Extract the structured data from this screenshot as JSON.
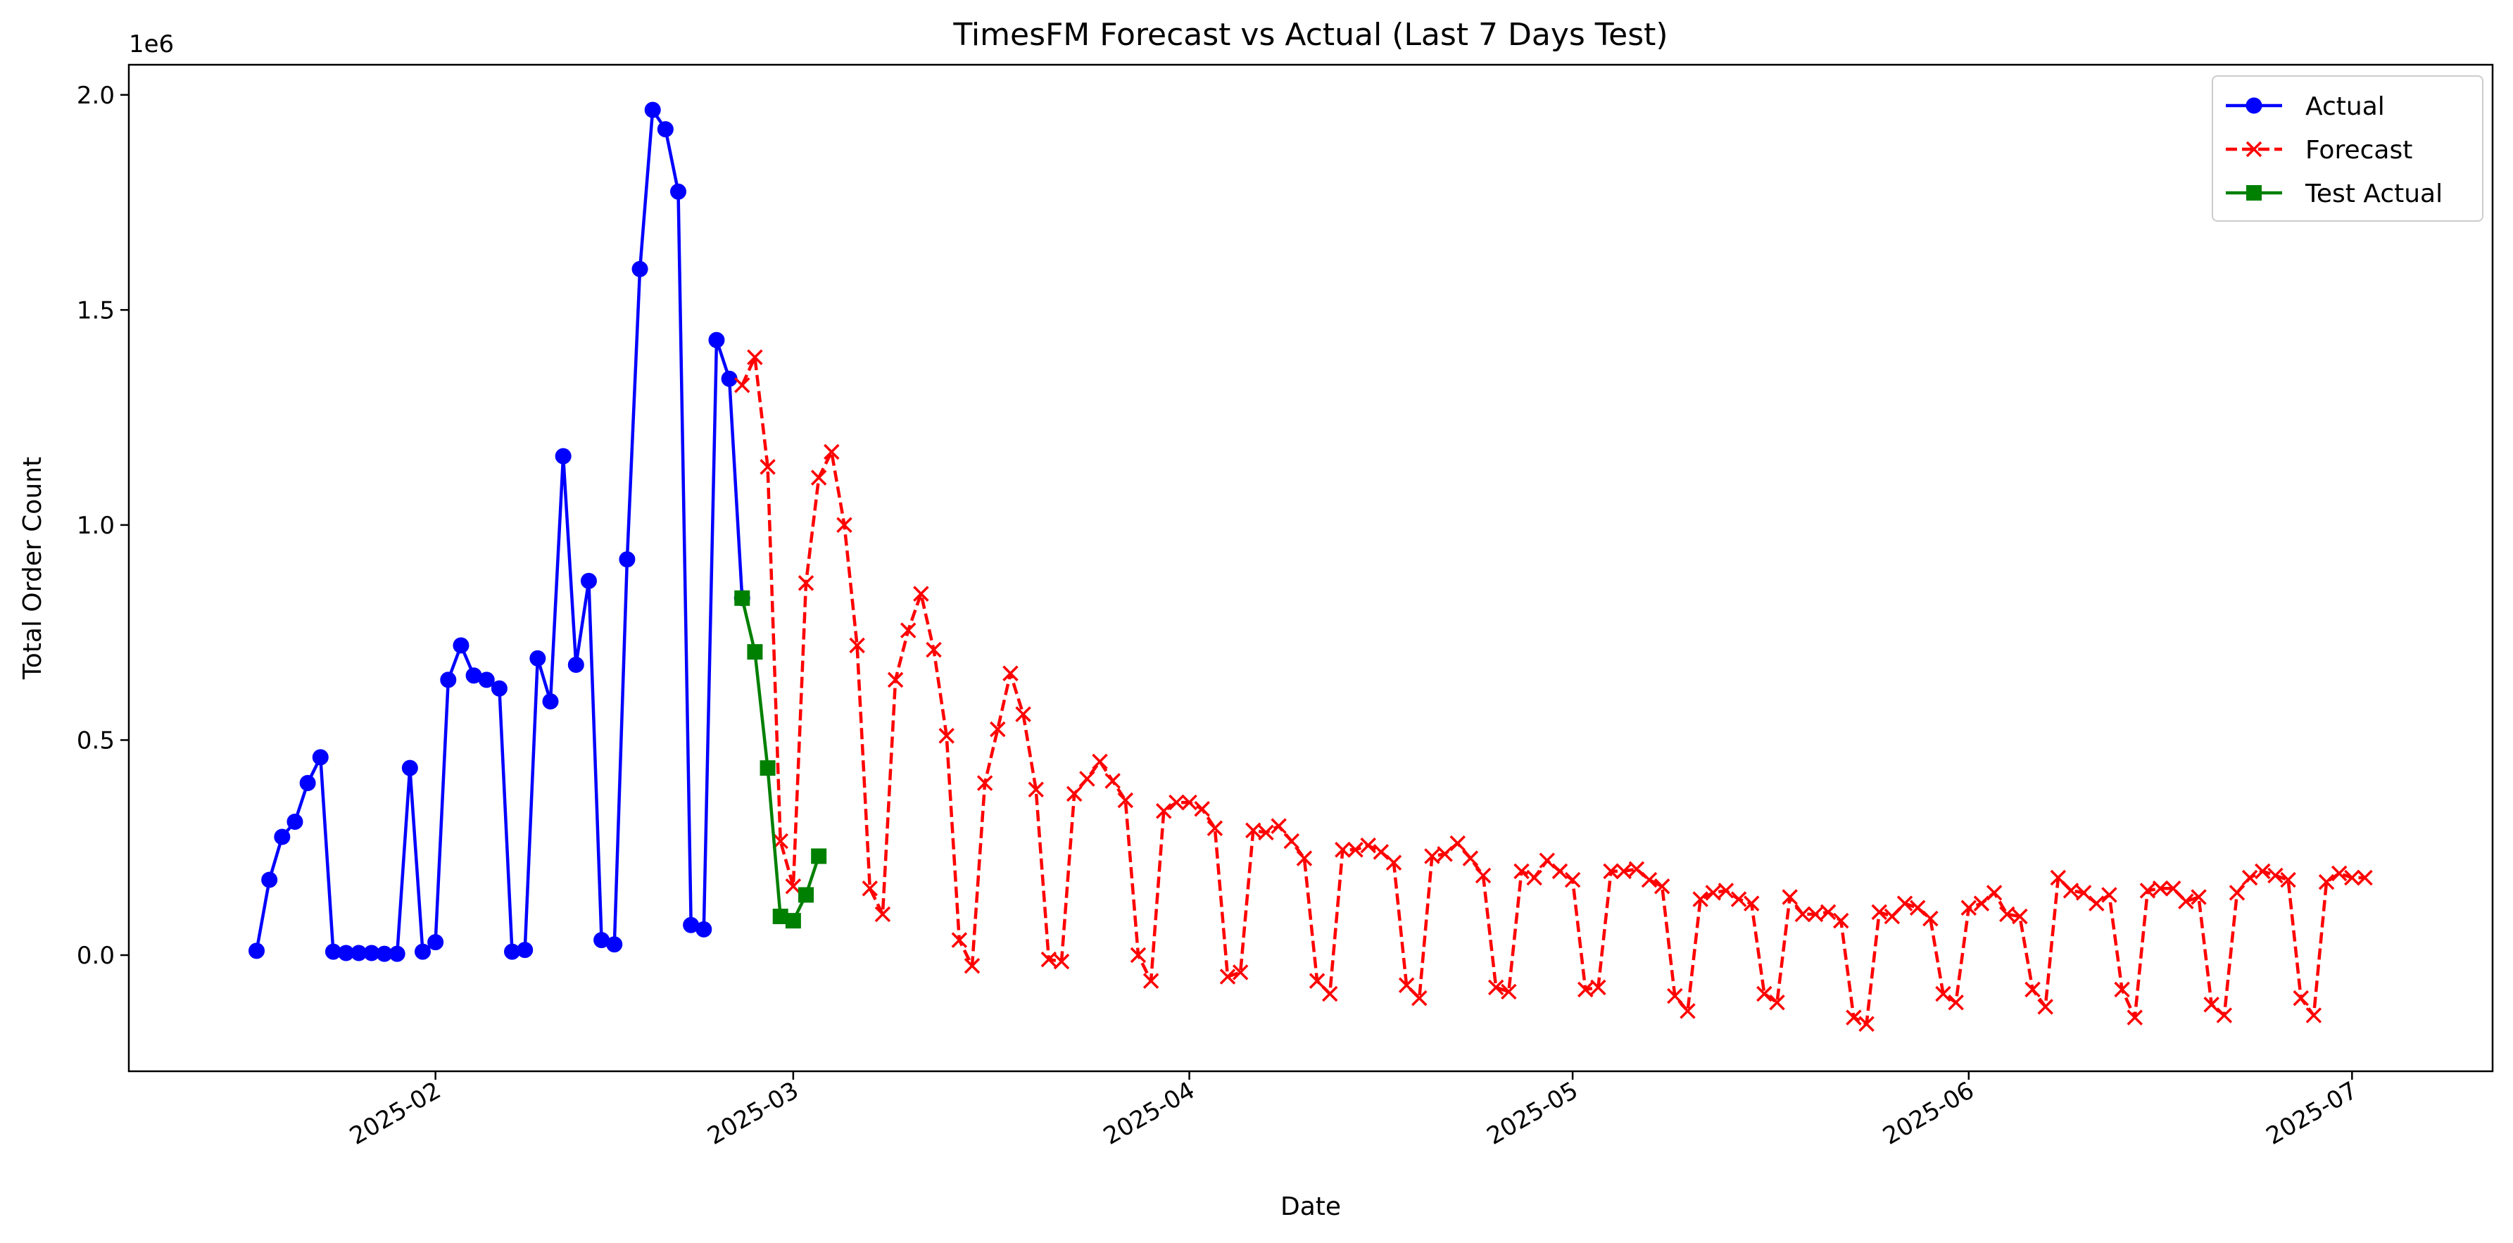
{
  "chart_data": {
    "type": "line",
    "title": "TimesFM Forecast vs Actual (Last 7 Days Test)",
    "xlabel": "Date",
    "ylabel": "Total Order Count",
    "y_offset_label": "1e6",
    "xlim": [
      "2025-01-08",
      "2025-07-12"
    ],
    "ylim": [
      -270000,
      2070000
    ],
    "x_tick_labels": [
      "2025-02",
      "2025-03",
      "2025-04",
      "2025-05",
      "2025-06",
      "2025-07"
    ],
    "x_tick_dates": [
      "2025-02-01",
      "2025-03-01",
      "2025-04-01",
      "2025-05-01",
      "2025-06-01",
      "2025-07-01"
    ],
    "y_ticks": [
      0,
      500000,
      1000000,
      1500000,
      2000000
    ],
    "y_tick_labels": [
      "0.0",
      "0.5",
      "1.0",
      "1.5",
      "2.0"
    ],
    "legend_position": "top-right",
    "grid": false,
    "series": [
      {
        "name": "Actual",
        "color": "#0000ff",
        "line_style": "solid",
        "marker": "circle",
        "start_date": "2025-01-18",
        "step_days": 1,
        "values": [
          10000,
          175000,
          275000,
          310000,
          400000,
          460000,
          8000,
          5000,
          5000,
          5000,
          3000,
          3000,
          435000,
          8000,
          30000,
          640000,
          720000,
          650000,
          640000,
          620000,
          8000,
          12000,
          690000,
          590000,
          1160000,
          675000,
          870000,
          35000,
          25000,
          920000,
          1595000,
          1965000,
          1920000,
          1775000,
          70000,
          60000,
          1430000,
          1340000,
          830000
        ]
      },
      {
        "name": "Forecast",
        "color": "#ff0000",
        "line_style": "dashed",
        "marker": "x",
        "start_date": "2025-02-25",
        "step_days": 1,
        "values": [
          1325000,
          1390000,
          1135000,
          265000,
          160000,
          865000,
          1110000,
          1170000,
          1000000,
          720000,
          155000,
          95000,
          640000,
          755000,
          840000,
          710000,
          510000,
          35000,
          -25000,
          400000,
          525000,
          655000,
          560000,
          385000,
          -10000,
          -15000,
          375000,
          410000,
          450000,
          405000,
          360000,
          0,
          -60000,
          335000,
          355000,
          355000,
          340000,
          295000,
          -50000,
          -40000,
          290000,
          285000,
          300000,
          265000,
          225000,
          -60000,
          -90000,
          245000,
          245000,
          255000,
          240000,
          215000,
          -70000,
          -100000,
          230000,
          235000,
          260000,
          225000,
          185000,
          -75000,
          -85000,
          195000,
          180000,
          220000,
          195000,
          175000,
          -80000,
          -75000,
          195000,
          195000,
          200000,
          175000,
          160000,
          -95000,
          -130000,
          130000,
          145000,
          150000,
          130000,
          120000,
          -90000,
          -110000,
          135000,
          95000,
          95000,
          100000,
          80000,
          -145000,
          -160000,
          100000,
          90000,
          120000,
          110000,
          85000,
          -90000,
          -110000,
          110000,
          120000,
          145000,
          95000,
          90000,
          -80000,
          -120000,
          180000,
          150000,
          145000,
          120000,
          140000,
          -80000,
          -145000,
          150000,
          155000,
          155000,
          125000,
          135000,
          -115000,
          -140000,
          145000,
          180000,
          195000,
          185000,
          175000,
          -100000,
          -140000,
          170000,
          190000,
          180000,
          180000
        ]
      },
      {
        "name": "Test Actual",
        "color": "#008000",
        "line_style": "solid",
        "marker": "square",
        "start_date": "2025-02-25",
        "step_days": 1,
        "values": [
          830000,
          705000,
          435000,
          90000,
          80000,
          140000,
          230000
        ]
      }
    ]
  }
}
